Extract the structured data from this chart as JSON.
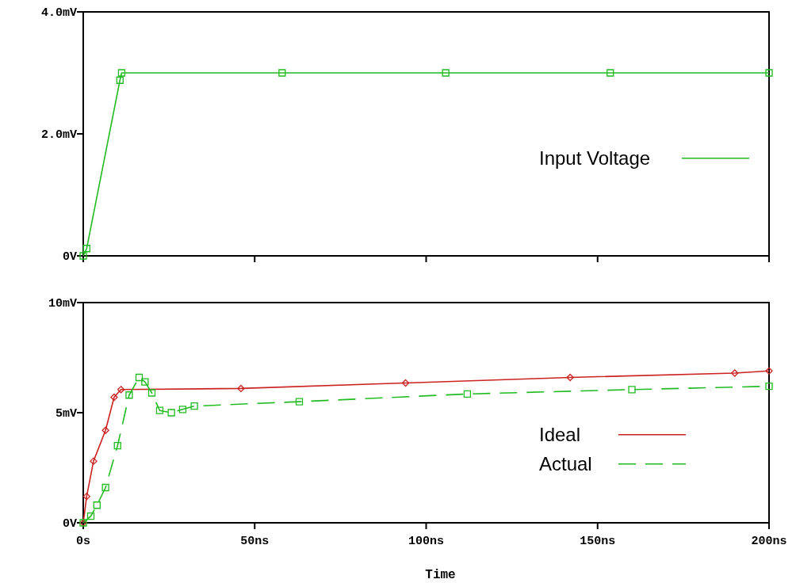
{
  "chart_data": [
    {
      "type": "line",
      "xlim": [
        0,
        200
      ],
      "ylim": [
        0,
        4
      ],
      "yticks": [
        {
          "value": 0,
          "label": "0V"
        },
        {
          "value": 2,
          "label": "2.0mV"
        },
        {
          "value": 4,
          "label": "4.0mV"
        }
      ],
      "xticks": [
        0,
        50,
        100,
        150,
        200
      ],
      "tick_labels": "y",
      "legend": "right",
      "series": [
        {
          "name": "Input Voltage",
          "color": "#22bb22",
          "marker": "square",
          "line_style": "solid",
          "x": [
            0,
            1,
            10.7,
            11.2,
            58,
            105.7,
            153.7,
            200
          ],
          "values": [
            0,
            0.12,
            2.88,
            3,
            3,
            3,
            3,
            3
          ]
        }
      ]
    },
    {
      "type": "line",
      "xlabel": "Time",
      "xlim": [
        0,
        200
      ],
      "ylim": [
        0,
        10
      ],
      "yticks": [
        {
          "value": 0,
          "label": "0V"
        },
        {
          "value": 5,
          "label": "5mV"
        },
        {
          "value": 10,
          "label": "10mV"
        }
      ],
      "xticks": [
        {
          "value": 0,
          "label": "0s"
        },
        {
          "value": 50,
          "label": "50ns"
        },
        {
          "value": 100,
          "label": "100ns"
        },
        {
          "value": 150,
          "label": "150ns"
        },
        {
          "value": 200,
          "label": "200ns"
        }
      ],
      "legend": "right",
      "series": [
        {
          "name": "Ideal",
          "color": "#cc2222",
          "marker": "diamond",
          "line_style": "solid",
          "x": [
            0,
            1,
            3,
            6.5,
            9,
            11,
            46,
            94,
            142,
            190,
            200
          ],
          "values": [
            0,
            1.2,
            2.8,
            4.2,
            5.7,
            6.05,
            6.1,
            6.35,
            6.6,
            6.8,
            6.9
          ]
        },
        {
          "name": "Actual",
          "color": "#22bb22",
          "marker": "square",
          "line_style": "dashed",
          "x": [
            0,
            2.2,
            4,
            6.5,
            10,
            13.4,
            16.3,
            18,
            20,
            22.3,
            25.7,
            29,
            32.4,
            63,
            112,
            160,
            200
          ],
          "values": [
            0,
            0.3,
            0.8,
            1.6,
            3.5,
            5.8,
            6.6,
            6.4,
            5.9,
            5.1,
            5.0,
            5.15,
            5.3,
            5.5,
            5.85,
            6.05,
            6.2
          ]
        }
      ]
    }
  ]
}
